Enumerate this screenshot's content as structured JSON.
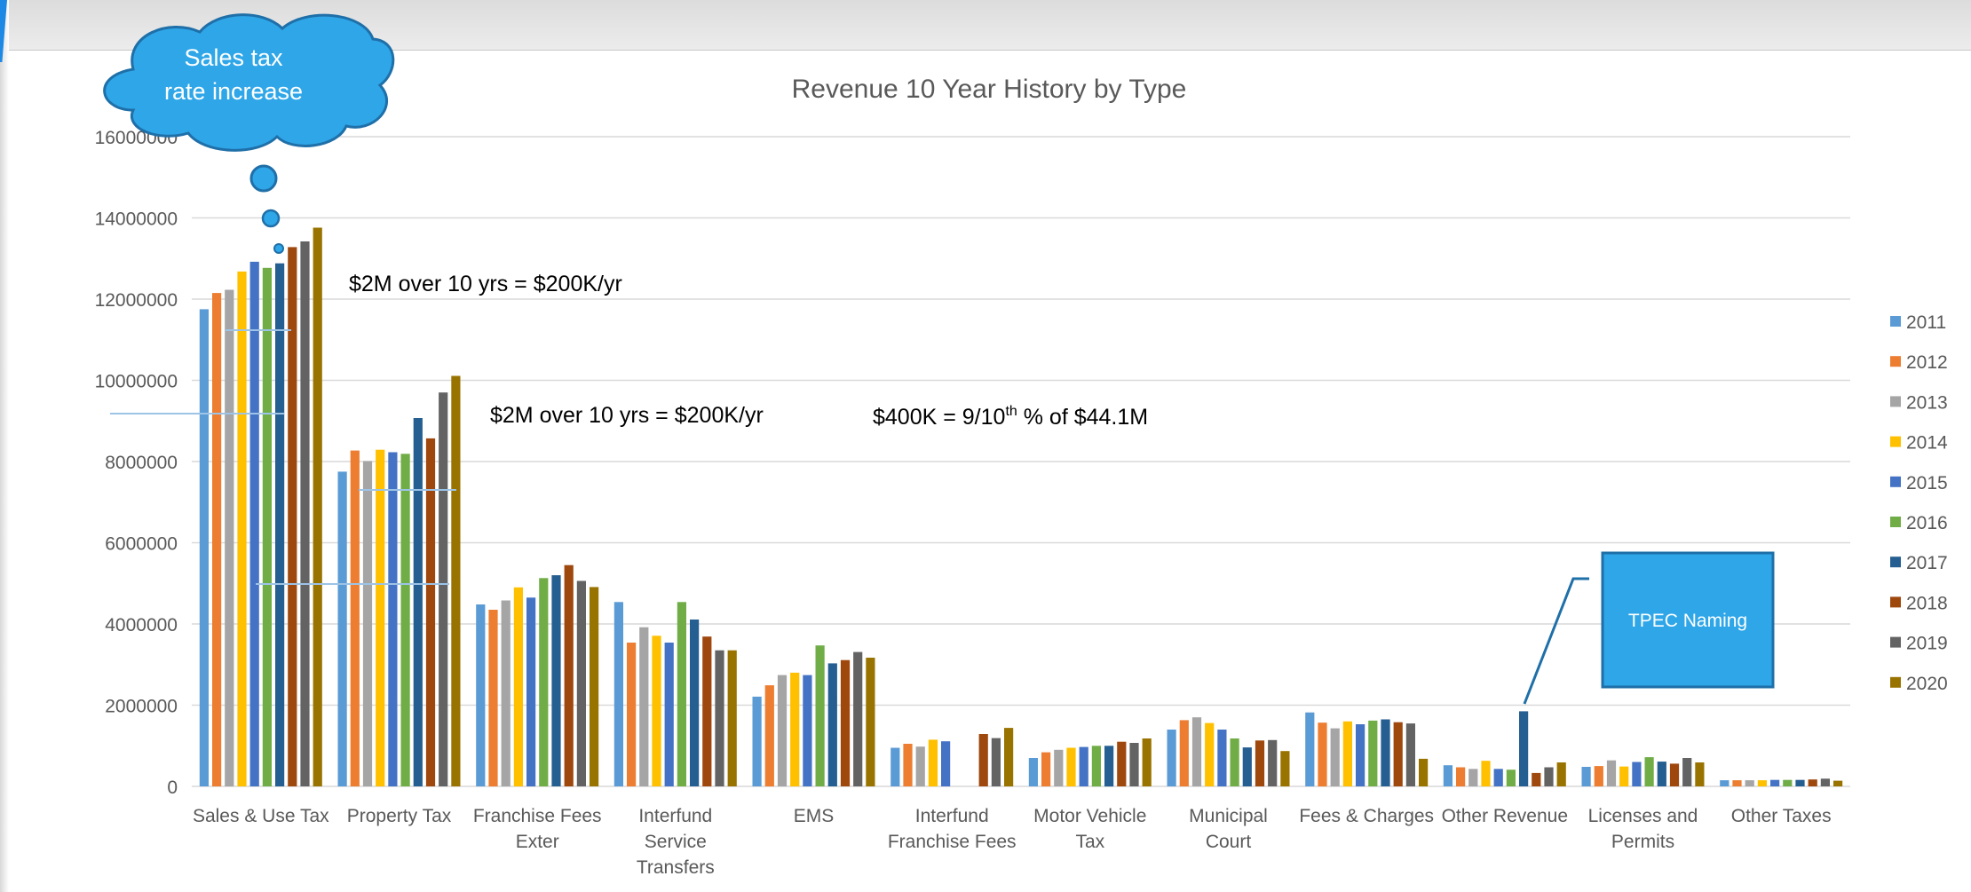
{
  "chart_data": {
    "type": "bar",
    "title": "Revenue 10 Year History by Type",
    "xlabel": "",
    "ylabel": "",
    "ylim": [
      0,
      16000000
    ],
    "yticks": [
      "0",
      "2000000",
      "4000000",
      "6000000",
      "8000000",
      "10000000",
      "12000000",
      "14000000",
      "16000000"
    ],
    "grid": true,
    "legend_position": "right",
    "categories": [
      [
        "Sales & Use Tax"
      ],
      [
        "Property Tax"
      ],
      [
        "Franchise Fees",
        "Exter"
      ],
      [
        "Interfund",
        "Service",
        "Transfers"
      ],
      [
        "EMS"
      ],
      [
        "Interfund",
        "Franchise Fees"
      ],
      [
        "Motor Vehicle",
        "Tax"
      ],
      [
        "Municipal",
        "Court"
      ],
      [
        "Fees & Charges"
      ],
      [
        "Other Revenue"
      ],
      [
        "Licenses and",
        "Permits"
      ],
      [
        "Other Taxes"
      ]
    ],
    "series": [
      {
        "name": "2011",
        "color": "#5b9bd5",
        "values": [
          11750000,
          7750000,
          4480000,
          4540000,
          2210000,
          950000,
          700000,
          1400000,
          1820000,
          520000,
          480000,
          150000
        ]
      },
      {
        "name": "2012",
        "color": "#ed7d31",
        "values": [
          12150000,
          8270000,
          4350000,
          3540000,
          2490000,
          1050000,
          840000,
          1630000,
          1570000,
          470000,
          500000,
          150000
        ]
      },
      {
        "name": "2013",
        "color": "#a5a5a5",
        "values": [
          12230000,
          8010000,
          4580000,
          3920000,
          2740000,
          980000,
          900000,
          1700000,
          1430000,
          430000,
          640000,
          150000
        ]
      },
      {
        "name": "2014",
        "color": "#ffc000",
        "values": [
          12680000,
          8290000,
          4900000,
          3710000,
          2800000,
          1150000,
          950000,
          1560000,
          1600000,
          630000,
          490000,
          150000
        ]
      },
      {
        "name": "2015",
        "color": "#4472c4",
        "values": [
          12920000,
          8230000,
          4650000,
          3540000,
          2740000,
          1110000,
          970000,
          1400000,
          1530000,
          430000,
          600000,
          160000
        ]
      },
      {
        "name": "2016",
        "color": "#70ad47",
        "values": [
          12770000,
          8190000,
          5130000,
          4540000,
          3470000,
          0,
          1000000,
          1180000,
          1620000,
          410000,
          720000,
          160000
        ]
      },
      {
        "name": "2017",
        "color": "#255e91",
        "values": [
          12880000,
          9070000,
          5200000,
          4110000,
          3030000,
          0,
          1000000,
          960000,
          1650000,
          1850000,
          610000,
          160000
        ]
      },
      {
        "name": "2018",
        "color": "#9e480e",
        "values": [
          13280000,
          8570000,
          5450000,
          3690000,
          3110000,
          1290000,
          1100000,
          1130000,
          1580000,
          330000,
          560000,
          170000
        ]
      },
      {
        "name": "2019",
        "color": "#636363",
        "values": [
          13420000,
          9700000,
          5060000,
          3350000,
          3310000,
          1190000,
          1070000,
          1140000,
          1550000,
          470000,
          700000,
          190000
        ]
      },
      {
        "name": "2020",
        "color": "#997300",
        "values": [
          13760000,
          10110000,
          4910000,
          3350000,
          3170000,
          1440000,
          1180000,
          870000,
          680000,
          590000,
          590000,
          140000
        ]
      }
    ],
    "annotations": {
      "bubble": [
        "Sales tax",
        "rate increase"
      ],
      "note_sales": "$2M over 10 yrs = $200K/yr",
      "note_property": "$2M over 10 yrs = $200K/yr",
      "note_total_main": "$400K = 9/10",
      "note_total_sup": "th",
      "note_total_tail": " % of $44.1M",
      "callout": "TPEC Naming"
    }
  }
}
